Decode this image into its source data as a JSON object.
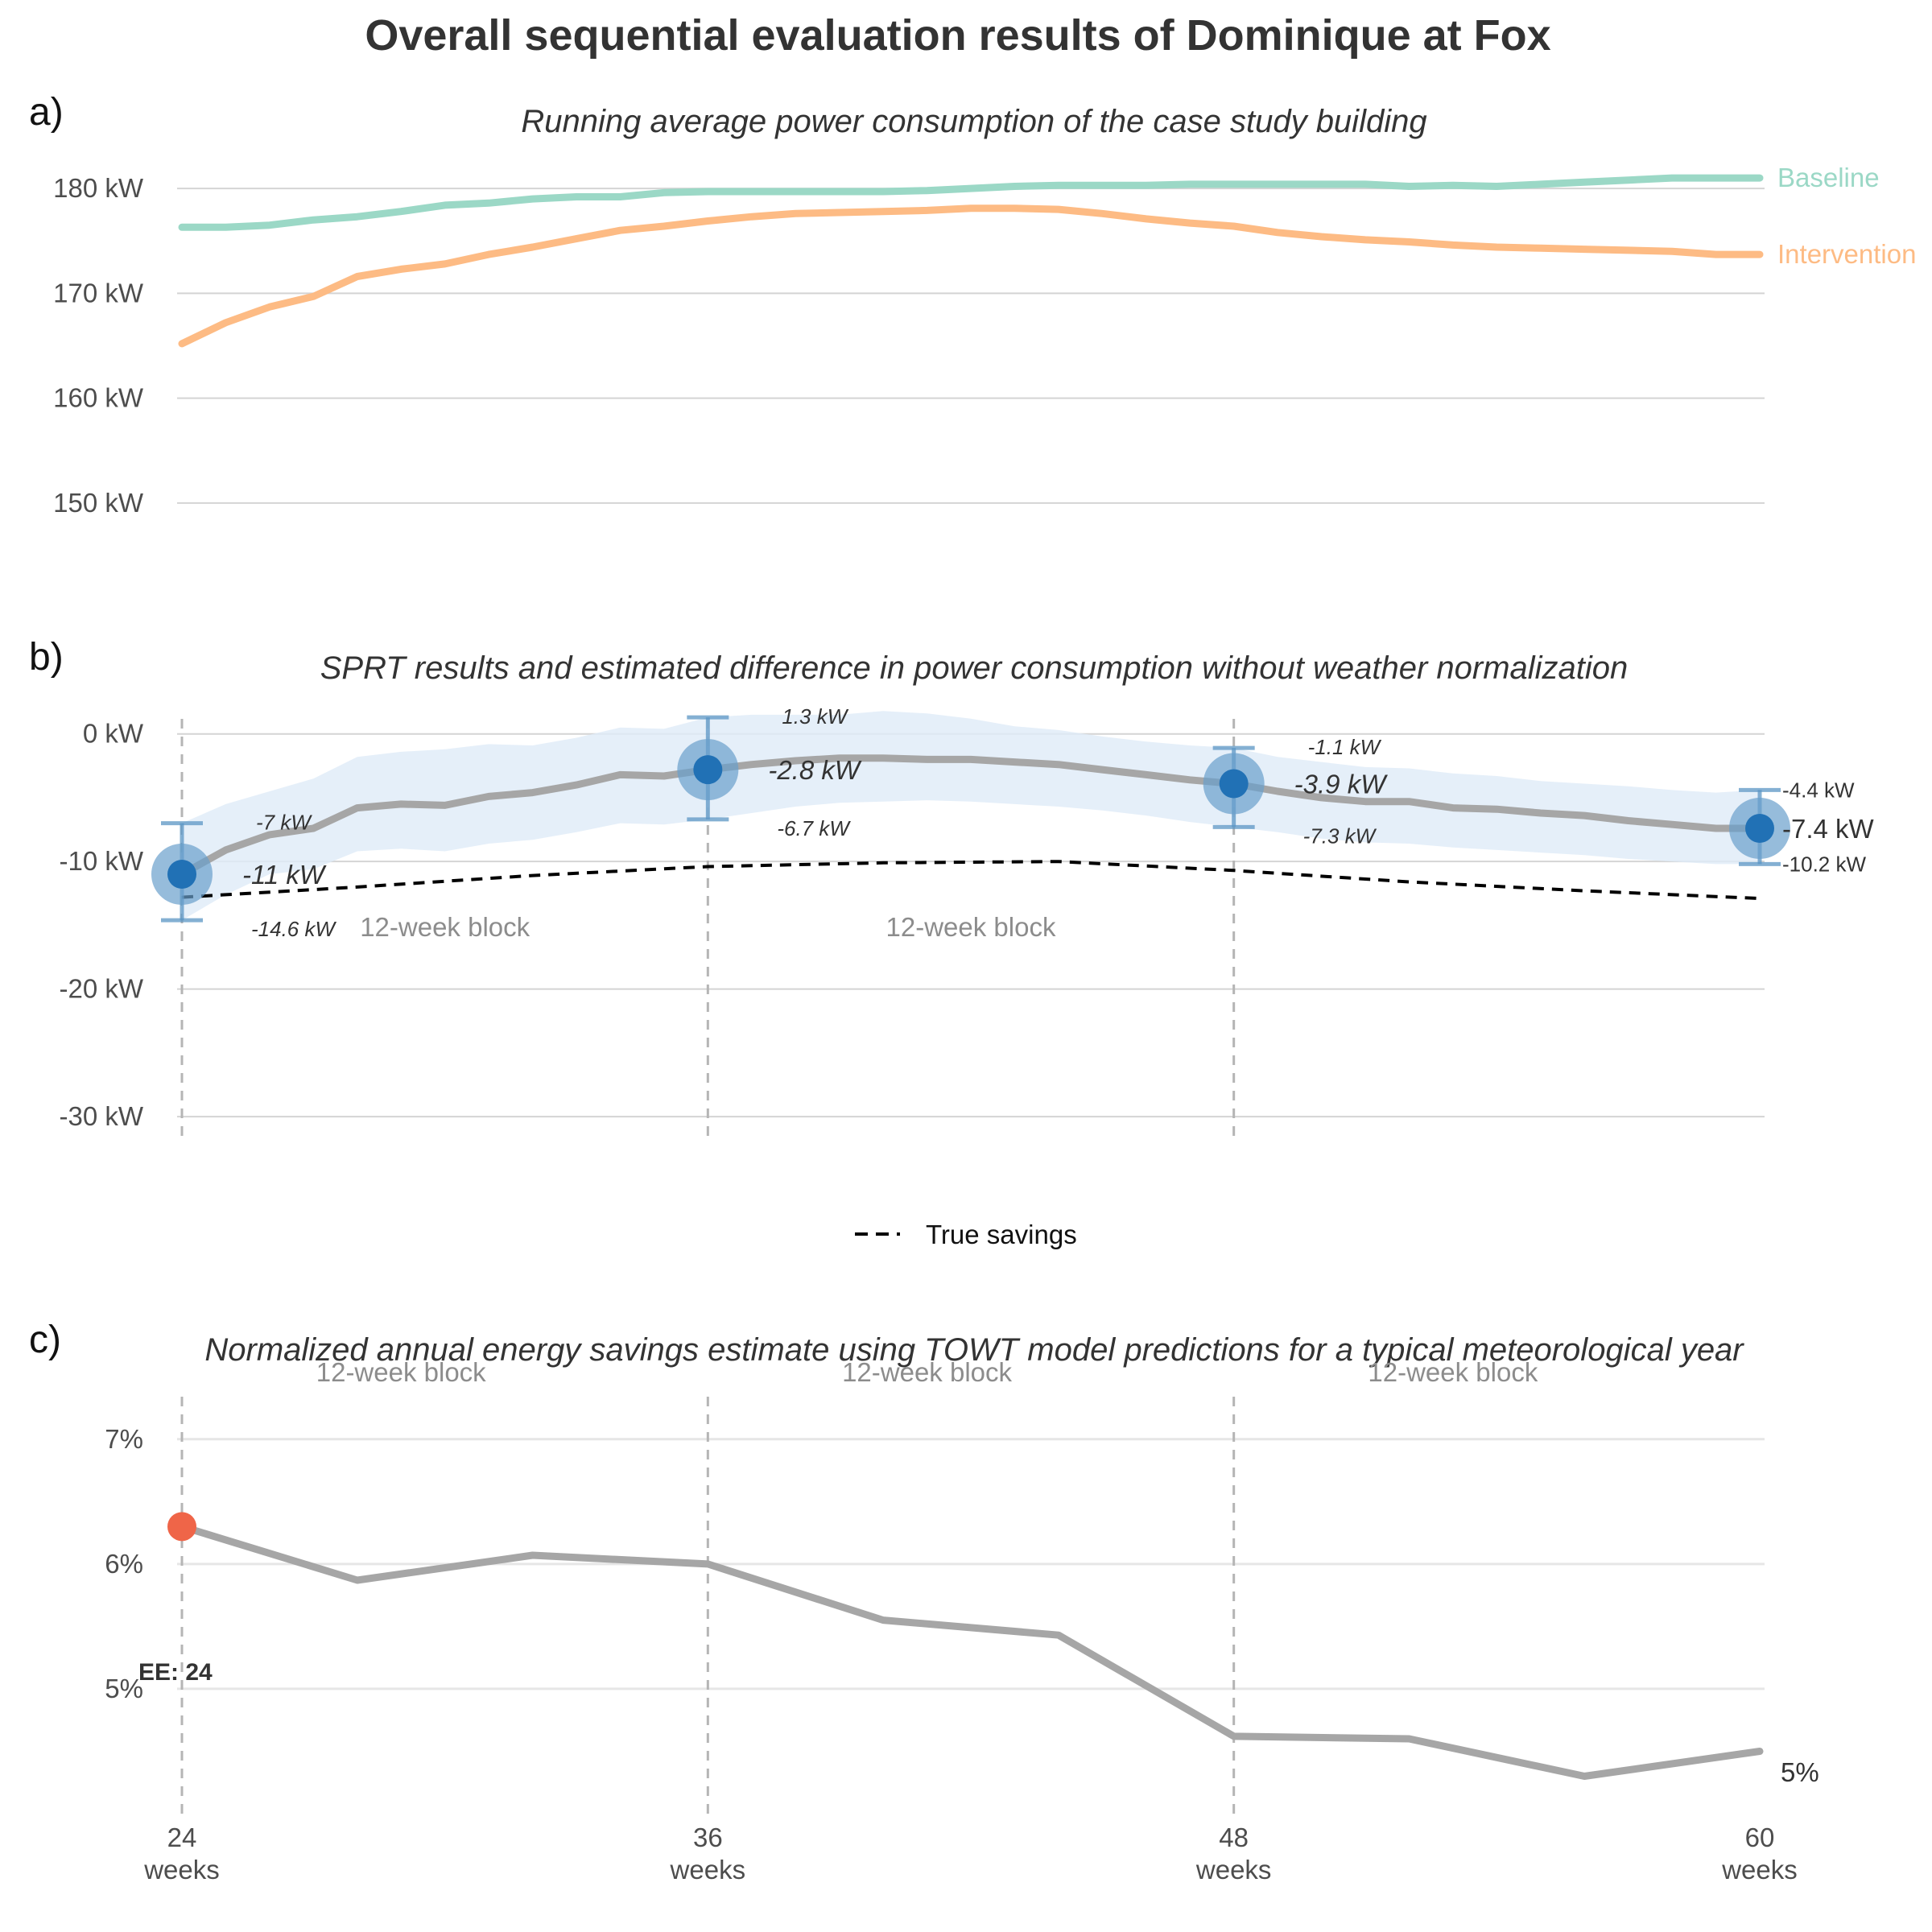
{
  "title": "Overall sequential evaluation results of Dominique at Fox",
  "colors": {
    "baseline": "#9bd8c6",
    "intervention": "#fdbb84",
    "estimate_line": "#a6a6a6",
    "ci_ribbon": "#deebf7",
    "sprt_point": "#2171b5",
    "sprt_halo": "#6a9fcc",
    "errorbar": "#5b95c4",
    "normalized_highlight": "#ef6548",
    "true_savings": "#000000"
  },
  "x_ticks": [
    {
      "value": 24,
      "label": "24",
      "unit": "weeks"
    },
    {
      "value": 36,
      "label": "36",
      "unit": "weeks"
    },
    {
      "value": 48,
      "label": "48",
      "unit": "weeks"
    },
    {
      "value": 60,
      "label": "60",
      "unit": "weeks"
    }
  ],
  "chart_data": [
    {
      "panel": "a)",
      "type": "line",
      "subtitle": "Running average power consumption of the case study building",
      "xlim": [
        24,
        60
      ],
      "ylim": [
        145,
        183
      ],
      "y_ticks": [
        {
          "value": 150,
          "label": "150 kW"
        },
        {
          "value": 160,
          "label": "160 kW"
        },
        {
          "value": 170,
          "label": "170 kW"
        },
        {
          "value": 180,
          "label": "180 kW"
        }
      ],
      "grid": "horizontal",
      "series": [
        {
          "name": "Baseline",
          "x": [
            24,
            25,
            26,
            27,
            28,
            29,
            30,
            31,
            32,
            33,
            34,
            35,
            36,
            37,
            38,
            39,
            40,
            41,
            42,
            43,
            44,
            45,
            46,
            47,
            48,
            49,
            50,
            51,
            52,
            53,
            54,
            55,
            56,
            57,
            58,
            59,
            60
          ],
          "values": [
            176.3,
            176.3,
            176.5,
            177.0,
            177.3,
            177.8,
            178.4,
            178.6,
            179.0,
            179.2,
            179.2,
            179.6,
            179.7,
            179.7,
            179.7,
            179.7,
            179.7,
            179.8,
            180.0,
            180.2,
            180.3,
            180.3,
            180.3,
            180.4,
            180.4,
            180.4,
            180.4,
            180.4,
            180.2,
            180.3,
            180.2,
            180.4,
            180.6,
            180.8,
            181.0,
            181.0,
            181.0
          ]
        },
        {
          "name": "Intervention",
          "x": [
            24,
            25,
            26,
            27,
            28,
            29,
            30,
            31,
            32,
            33,
            34,
            35,
            36,
            37,
            38,
            39,
            40,
            41,
            42,
            43,
            44,
            45,
            46,
            47,
            48,
            49,
            50,
            51,
            52,
            53,
            54,
            55,
            56,
            57,
            58,
            59,
            60
          ],
          "values": [
            165.2,
            167.2,
            168.7,
            169.7,
            171.6,
            172.3,
            172.8,
            173.7,
            174.4,
            175.2,
            176.0,
            176.4,
            176.9,
            177.3,
            177.6,
            177.7,
            177.8,
            177.9,
            178.1,
            178.1,
            178.0,
            177.6,
            177.1,
            176.7,
            176.4,
            175.8,
            175.4,
            175.1,
            174.9,
            174.6,
            174.4,
            174.3,
            174.2,
            174.1,
            174.0,
            173.7,
            173.7
          ]
        }
      ]
    },
    {
      "panel": "b)",
      "type": "line",
      "subtitle": "SPRT results and estimated difference in power consumption without weather normalization",
      "xlim": [
        24,
        60
      ],
      "ylim": [
        -31,
        2
      ],
      "y_ticks": [
        {
          "value": 0,
          "label": "0 kW"
        },
        {
          "value": -10,
          "label": "-10 kW"
        },
        {
          "value": -20,
          "label": "-20 kW"
        },
        {
          "value": -30,
          "label": "-30 kW"
        }
      ],
      "grid": "horizontal",
      "block_labels": [
        "12-week block",
        "12-week block"
      ],
      "estimate": {
        "x": [
          24,
          25,
          26,
          27,
          28,
          29,
          30,
          31,
          32,
          33,
          34,
          35,
          36,
          37,
          38,
          39,
          40,
          41,
          42,
          43,
          44,
          45,
          46,
          47,
          48,
          49,
          50,
          51,
          52,
          53,
          54,
          55,
          56,
          57,
          58,
          59,
          60
        ],
        "values": [
          -11.0,
          -9.1,
          -7.9,
          -7.4,
          -5.8,
          -5.5,
          -5.6,
          -4.9,
          -4.6,
          -4.0,
          -3.2,
          -3.3,
          -2.8,
          -2.4,
          -2.1,
          -1.9,
          -1.9,
          -2.0,
          -2.0,
          -2.2,
          -2.4,
          -2.8,
          -3.2,
          -3.6,
          -3.9,
          -4.5,
          -5.0,
          -5.3,
          -5.3,
          -5.8,
          -5.9,
          -6.2,
          -6.4,
          -6.8,
          -7.1,
          -7.4,
          -7.4
        ]
      },
      "ci_ribbon": {
        "lower": [
          -14.6,
          -12.6,
          -11.0,
          -10.6,
          -9.2,
          -9.0,
          -9.2,
          -8.6,
          -8.3,
          -7.7,
          -7.0,
          -7.1,
          -6.7,
          -6.2,
          -5.7,
          -5.4,
          -5.3,
          -5.2,
          -5.3,
          -5.5,
          -5.7,
          -6.0,
          -6.4,
          -6.9,
          -7.3,
          -7.7,
          -8.2,
          -8.5,
          -8.6,
          -8.9,
          -9.1,
          -9.3,
          -9.5,
          -9.8,
          -10.0,
          -10.2,
          -10.2
        ],
        "upper": [
          -7.0,
          -5.5,
          -4.5,
          -3.5,
          -1.8,
          -1.4,
          -1.2,
          -0.8,
          -0.9,
          -0.3,
          0.5,
          0.4,
          1.3,
          1.5,
          1.5,
          1.5,
          1.8,
          1.6,
          1.2,
          0.6,
          0.3,
          -0.2,
          -0.6,
          -0.9,
          -1.1,
          -1.8,
          -2.2,
          -2.6,
          -2.7,
          -3.1,
          -3.3,
          -3.7,
          -3.9,
          -4.1,
          -4.4,
          -4.6,
          -4.4
        ]
      },
      "sprt_checkpoints": [
        {
          "x": 24,
          "estimate": -11.0,
          "lower": -14.6,
          "upper": -7.0,
          "estimate_label": "-11 kW",
          "lower_label": "-14.6 kW",
          "upper_label": "-7 kW"
        },
        {
          "x": 36,
          "estimate": -2.8,
          "lower": -6.7,
          "upper": 1.3,
          "estimate_label": "-2.8 kW",
          "lower_label": "-6.7 kW",
          "upper_label": "1.3 kW"
        },
        {
          "x": 48,
          "estimate": -3.9,
          "lower": -7.3,
          "upper": -1.1,
          "estimate_label": "-3.9 kW",
          "lower_label": "-7.3 kW",
          "upper_label": "-1.1 kW"
        },
        {
          "x": 60,
          "estimate": -7.4,
          "lower": -10.2,
          "upper": -4.4,
          "estimate_label": "-7.4 kW",
          "lower_label": "-10.2 kW",
          "upper_label": "-4.4 kW"
        }
      ],
      "true_savings": {
        "name": "True savings",
        "x": [
          24,
          28,
          32,
          36,
          40,
          44,
          48,
          52,
          56,
          60
        ],
        "values": [
          -12.8,
          -12.0,
          -11.1,
          -10.4,
          -10.1,
          -10.0,
          -10.7,
          -11.6,
          -12.3,
          -12.9
        ]
      },
      "legend": {
        "label": "True savings",
        "placement": "bottom"
      }
    },
    {
      "panel": "c)",
      "type": "line",
      "subtitle": "Normalized annual energy savings estimate using TOWT model predictions for a typical meteorological year",
      "xlim": [
        24,
        60
      ],
      "ylim": [
        4.0,
        7.45
      ],
      "y_ticks": [
        {
          "value": 5,
          "label": "5%"
        },
        {
          "value": 6,
          "label": "6%"
        },
        {
          "value": 7,
          "label": "7%"
        }
      ],
      "grid": "horizontal",
      "block_labels": [
        "12-week block",
        "12-week block",
        "12-week block"
      ],
      "series": [
        {
          "x": [
            24,
            28,
            32,
            36,
            40,
            44,
            48,
            52,
            56,
            60
          ],
          "values": [
            6.3,
            5.87,
            6.07,
            6.0,
            5.55,
            5.43,
            4.62,
            4.6,
            4.3,
            4.5
          ]
        }
      ],
      "highlight": {
        "x": 24,
        "value": 6.3
      },
      "annotation": "EE: 24",
      "end_label": "5%"
    }
  ]
}
